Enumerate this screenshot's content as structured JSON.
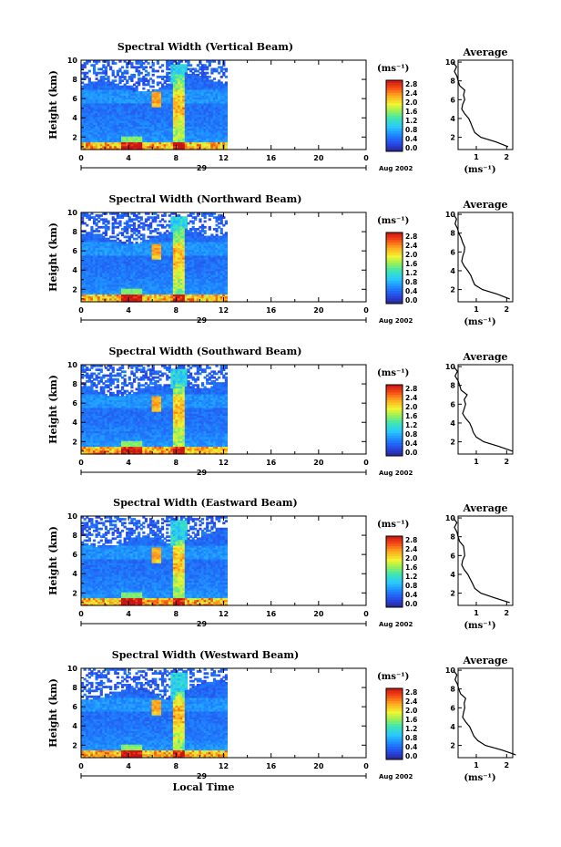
{
  "chart_data": [
    {
      "type": "heatmap",
      "title": "Spectral Width (Vertical Beam)",
      "ylabel": "Height (km)",
      "xticks": [
        "0",
        "4",
        "8",
        "12",
        "16",
        "20",
        "0"
      ],
      "yticks": [
        "2",
        "4",
        "6",
        "8",
        "10"
      ],
      "xlim": [
        0,
        24
      ],
      "ylim": [
        0.7,
        10
      ],
      "data_end_hour": 12.3,
      "day_label": "29",
      "month_label": "Aug 2002",
      "colorbar": {
        "unit": "(ms⁻¹)",
        "ticks": [
          "2.8",
          "2.4",
          "2.0",
          "1.6",
          "1.2",
          "0.8",
          "0.4",
          "0.0"
        ],
        "range": [
          0,
          2.8
        ]
      },
      "average": {
        "title": "Average",
        "xlabel": "(ms⁻¹)",
        "xticks": [
          "1",
          "2"
        ],
        "yticks": [
          "2",
          "4",
          "6",
          "8",
          "10"
        ],
        "height": [
          1.0,
          1.5,
          2.0,
          2.5,
          3.0,
          3.5,
          4.0,
          4.5,
          5.0,
          5.5,
          6.0,
          6.5,
          7.0,
          7.5,
          8.0,
          8.5,
          9.0,
          9.5,
          10.0
        ],
        "width": [
          2.05,
          1.65,
          1.15,
          0.95,
          0.88,
          0.82,
          0.75,
          0.62,
          0.52,
          0.55,
          0.62,
          0.58,
          0.62,
          0.45,
          0.4,
          0.36,
          0.28,
          0.35,
          0.22
        ]
      }
    },
    {
      "type": "heatmap",
      "title": "Spectral Width (Northward Beam)",
      "ylabel": "Height (km)",
      "xticks": [
        "0",
        "4",
        "8",
        "12",
        "16",
        "20",
        "0"
      ],
      "yticks": [
        "2",
        "4",
        "6",
        "8",
        "10"
      ],
      "xlim": [
        0,
        24
      ],
      "ylim": [
        0.7,
        10
      ],
      "data_end_hour": 12.3,
      "day_label": "29",
      "month_label": "Aug 2002",
      "colorbar": {
        "unit": "(ms⁻¹)",
        "ticks": [
          "2.8",
          "2.4",
          "2.0",
          "1.6",
          "1.2",
          "0.8",
          "0.4",
          "0.0"
        ],
        "range": [
          0,
          2.8
        ]
      },
      "average": {
        "title": "Average",
        "xlabel": "(ms⁻¹)",
        "xticks": [
          "1",
          "2"
        ],
        "yticks": [
          "2",
          "4",
          "6",
          "8",
          "10"
        ],
        "height": [
          1.0,
          1.5,
          2.0,
          2.5,
          3.0,
          3.5,
          4.0,
          4.5,
          5.0,
          5.5,
          6.0,
          6.5,
          7.0,
          7.5,
          8.0,
          8.5,
          9.0,
          9.5,
          10.0
        ],
        "width": [
          2.1,
          1.7,
          1.2,
          0.95,
          0.88,
          0.82,
          0.72,
          0.6,
          0.52,
          0.55,
          0.6,
          0.62,
          0.55,
          0.5,
          0.42,
          0.38,
          0.3,
          0.35,
          0.25
        ]
      }
    },
    {
      "type": "heatmap",
      "title": "Spectral Width (Southward Beam)",
      "ylabel": "Height (km)",
      "xticks": [
        "0",
        "4",
        "8",
        "12",
        "16",
        "20",
        "0"
      ],
      "yticks": [
        "2",
        "4",
        "6",
        "8",
        "10"
      ],
      "xlim": [
        0,
        24
      ],
      "ylim": [
        0.7,
        10
      ],
      "data_end_hour": 12.3,
      "day_label": "29",
      "month_label": "Aug 2002",
      "colorbar": {
        "unit": "(ms⁻¹)",
        "ticks": [
          "2.8",
          "2.4",
          "2.0",
          "1.6",
          "1.2",
          "0.8",
          "0.4",
          "0.0"
        ],
        "range": [
          0,
          2.8
        ]
      },
      "average": {
        "title": "Average",
        "xlabel": "",
        "xticks": [
          "1",
          "2"
        ],
        "yticks": [
          "2",
          "4",
          "6",
          "8",
          "10"
        ],
        "height": [
          1.0,
          1.5,
          2.0,
          2.5,
          3.0,
          3.5,
          4.0,
          4.5,
          5.0,
          5.5,
          6.0,
          6.5,
          7.0,
          7.5,
          8.0,
          8.5,
          9.0,
          9.5,
          10.0
        ],
        "width": [
          2.2,
          1.75,
          1.25,
          1.0,
          0.9,
          0.85,
          0.78,
          0.65,
          0.55,
          0.6,
          0.65,
          0.6,
          0.7,
          0.5,
          0.45,
          0.4,
          0.3,
          0.38,
          0.25
        ]
      }
    },
    {
      "type": "heatmap",
      "title": "Spectral Width (Eastward Beam)",
      "ylabel": "Height (km)",
      "xticks": [
        "0",
        "4",
        "8",
        "12",
        "16",
        "20",
        "0"
      ],
      "yticks": [
        "2",
        "4",
        "6",
        "8",
        "10"
      ],
      "xlim": [
        0,
        24
      ],
      "ylim": [
        0.7,
        10
      ],
      "data_end_hour": 12.3,
      "day_label": "29",
      "month_label": "Aug 2002",
      "colorbar": {
        "unit": "(ms⁻¹)",
        "ticks": [
          "2.8",
          "2.4",
          "2.0",
          "1.6",
          "1.2",
          "0.8",
          "0.4",
          "0.0"
        ],
        "range": [
          0,
          2.8
        ]
      },
      "average": {
        "title": "Average",
        "xlabel": "(ms⁻¹)",
        "xticks": [
          "1",
          "2"
        ],
        "yticks": [
          "2",
          "4",
          "6",
          "8",
          "10"
        ],
        "height": [
          1.0,
          1.5,
          2.0,
          2.5,
          3.0,
          3.5,
          4.0,
          4.5,
          5.0,
          5.5,
          6.0,
          6.5,
          7.0,
          7.5,
          8.0,
          8.5,
          9.0,
          9.5,
          10.0
        ],
        "width": [
          2.1,
          1.6,
          1.15,
          0.95,
          0.88,
          0.8,
          0.72,
          0.6,
          0.52,
          0.55,
          0.62,
          0.6,
          0.58,
          0.45,
          0.4,
          0.36,
          0.28,
          0.36,
          0.24
        ]
      }
    },
    {
      "type": "heatmap",
      "title": "Spectral Width (Westward Beam)",
      "ylabel": "Height (km)",
      "xticks": [
        "0",
        "4",
        "8",
        "12",
        "16",
        "20",
        "0"
      ],
      "yticks": [
        "2",
        "4",
        "6",
        "8",
        "10"
      ],
      "xlim": [
        0,
        24
      ],
      "ylim": [
        0.7,
        10
      ],
      "data_end_hour": 12.3,
      "day_label": "29",
      "month_label": "Aug 2002",
      "xlabel": "Local Time",
      "colorbar": {
        "unit": "(ms⁻¹)",
        "ticks": [
          "2.8",
          "2.4",
          "2.0",
          "1.6",
          "1.2",
          "0.8",
          "0.4",
          "0.0"
        ],
        "range": [
          0,
          2.8
        ]
      },
      "average": {
        "title": "Average",
        "xlabel": "(ms⁻¹)",
        "xticks": [
          "1",
          "2"
        ],
        "yticks": [
          "2",
          "4",
          "6",
          "8",
          "10"
        ],
        "height": [
          1.0,
          1.5,
          2.0,
          2.5,
          3.0,
          3.5,
          4.0,
          4.5,
          5.0,
          5.5,
          6.0,
          6.5,
          7.0,
          7.5,
          8.0,
          8.5,
          9.0,
          9.5,
          10.0
        ],
        "width": [
          2.3,
          1.85,
          1.3,
          1.05,
          0.92,
          0.85,
          0.78,
          0.65,
          0.55,
          0.58,
          0.62,
          0.6,
          0.65,
          0.48,
          0.42,
          0.38,
          0.3,
          0.36,
          0.24
        ]
      }
    }
  ]
}
